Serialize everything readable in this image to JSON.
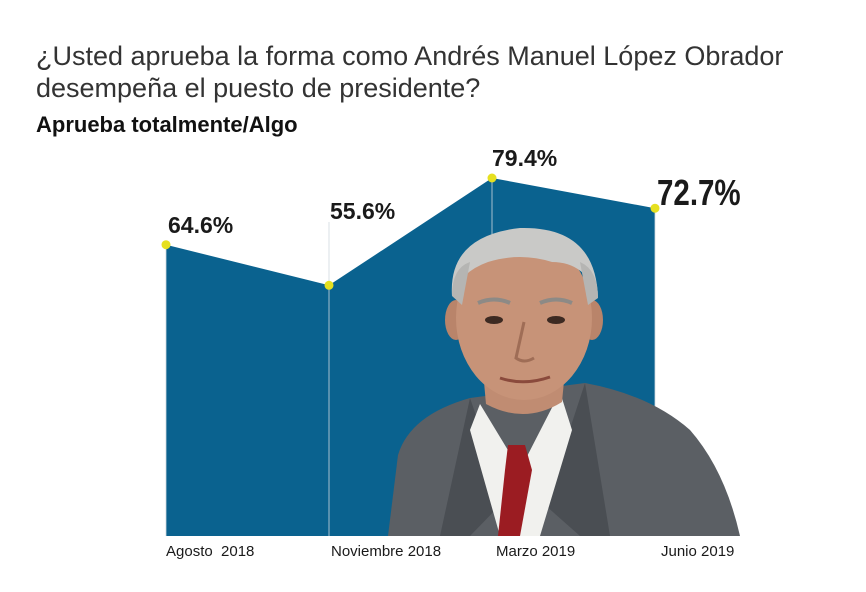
{
  "question": "¿Usted aprueba la forma como Andrés Manuel López Obrador desempeña el puesto de presidente?",
  "subtitle": "Aprueba totalmente/Algo",
  "colors": {
    "area": "#0a628f",
    "marker": "#e6e020",
    "guide": "#cfd8df"
  },
  "chart_data": {
    "type": "area",
    "title": "¿Usted aprueba la forma como Andrés Manuel López Obrador desempeña el puesto de presidente?",
    "subtitle": "Aprueba totalmente/Algo",
    "categories": [
      "Agosto  2018",
      "Noviembre 2018",
      "Marzo 2019",
      "Junio 2019"
    ],
    "values": [
      64.6,
      55.6,
      79.4,
      72.7
    ],
    "value_labels": [
      "64.6%",
      "55.6%",
      "79.4%",
      "72.7%"
    ],
    "unit": "%",
    "ylim": [
      0,
      90
    ],
    "grid": false,
    "legend": "none"
  }
}
